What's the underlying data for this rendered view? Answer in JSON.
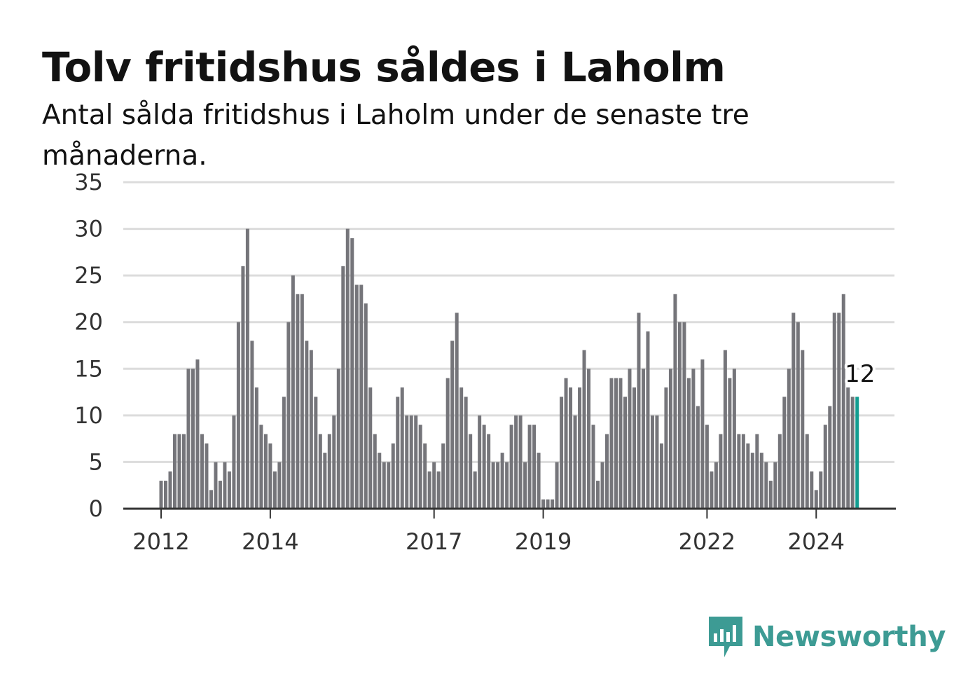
{
  "title": "Tolv fritidshus såldes i Laholm",
  "subtitle": "Antal sålda fritidshus i Laholm under de senaste tre månaderna.",
  "brand": {
    "name": "Newsworthy",
    "color": "#3d9b94",
    "icon": "newsworthy-logo-icon"
  },
  "colors": {
    "bar": "#75757a",
    "highlight": "#139d91",
    "grid": "#dcdcdc",
    "axis": "#333333"
  },
  "chart_data": {
    "type": "bar",
    "ylim": [
      0,
      35
    ],
    "yticks": [
      0,
      5,
      10,
      15,
      20,
      25,
      30,
      35
    ],
    "xticks": [
      "2012",
      "2014",
      "2017",
      "2019",
      "2022",
      "2024"
    ],
    "grid": true,
    "highlight_label": "12",
    "values": [
      3,
      3,
      4,
      8,
      8,
      8,
      15,
      15,
      16,
      8,
      7,
      2,
      5,
      3,
      5,
      4,
      10,
      20,
      26,
      30,
      18,
      13,
      9,
      8,
      7,
      4,
      5,
      12,
      20,
      25,
      23,
      23,
      18,
      17,
      12,
      8,
      6,
      8,
      10,
      15,
      26,
      30,
      29,
      24,
      24,
      22,
      13,
      8,
      6,
      5,
      5,
      7,
      12,
      13,
      10,
      10,
      10,
      9,
      7,
      4,
      5,
      4,
      7,
      14,
      18,
      21,
      13,
      12,
      8,
      4,
      10,
      9,
      8,
      5,
      5,
      6,
      5,
      9,
      10,
      10,
      5,
      9,
      9,
      6,
      1,
      1,
      1,
      5,
      12,
      14,
      13,
      10,
      13,
      17,
      15,
      9,
      3,
      5,
      8,
      14,
      14,
      14,
      12,
      15,
      13,
      21,
      15,
      19,
      10,
      10,
      7,
      13,
      15,
      23,
      20,
      20,
      14,
      15,
      11,
      16,
      9,
      4,
      5,
      8,
      17,
      14,
      15,
      8,
      8,
      7,
      6,
      8,
      6,
      5,
      3,
      5,
      8,
      12,
      15,
      21,
      20,
      17,
      8,
      4,
      2,
      4,
      9,
      11,
      21,
      21,
      23,
      13,
      12,
      12
    ]
  }
}
